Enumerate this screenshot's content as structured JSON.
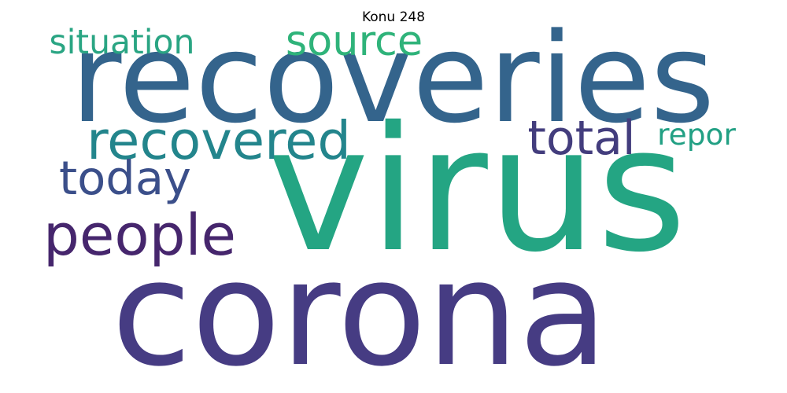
{
  "title": "Konu 248",
  "words": [
    {
      "text": "recoveries",
      "color": "#34648c"
    },
    {
      "text": "virus",
      "color": "#24a583"
    },
    {
      "text": "corona",
      "color": "#463c83"
    },
    {
      "text": "source",
      "color": "#2fb37a"
    },
    {
      "text": "situation",
      "color": "#2aa583"
    },
    {
      "text": "recovered",
      "color": "#23858c"
    },
    {
      "text": "total",
      "color": "#433d7d"
    },
    {
      "text": "repor",
      "color": "#22a084"
    },
    {
      "text": "today",
      "color": "#3b4f8a"
    },
    {
      "text": "people",
      "color": "#46266d"
    }
  ]
}
